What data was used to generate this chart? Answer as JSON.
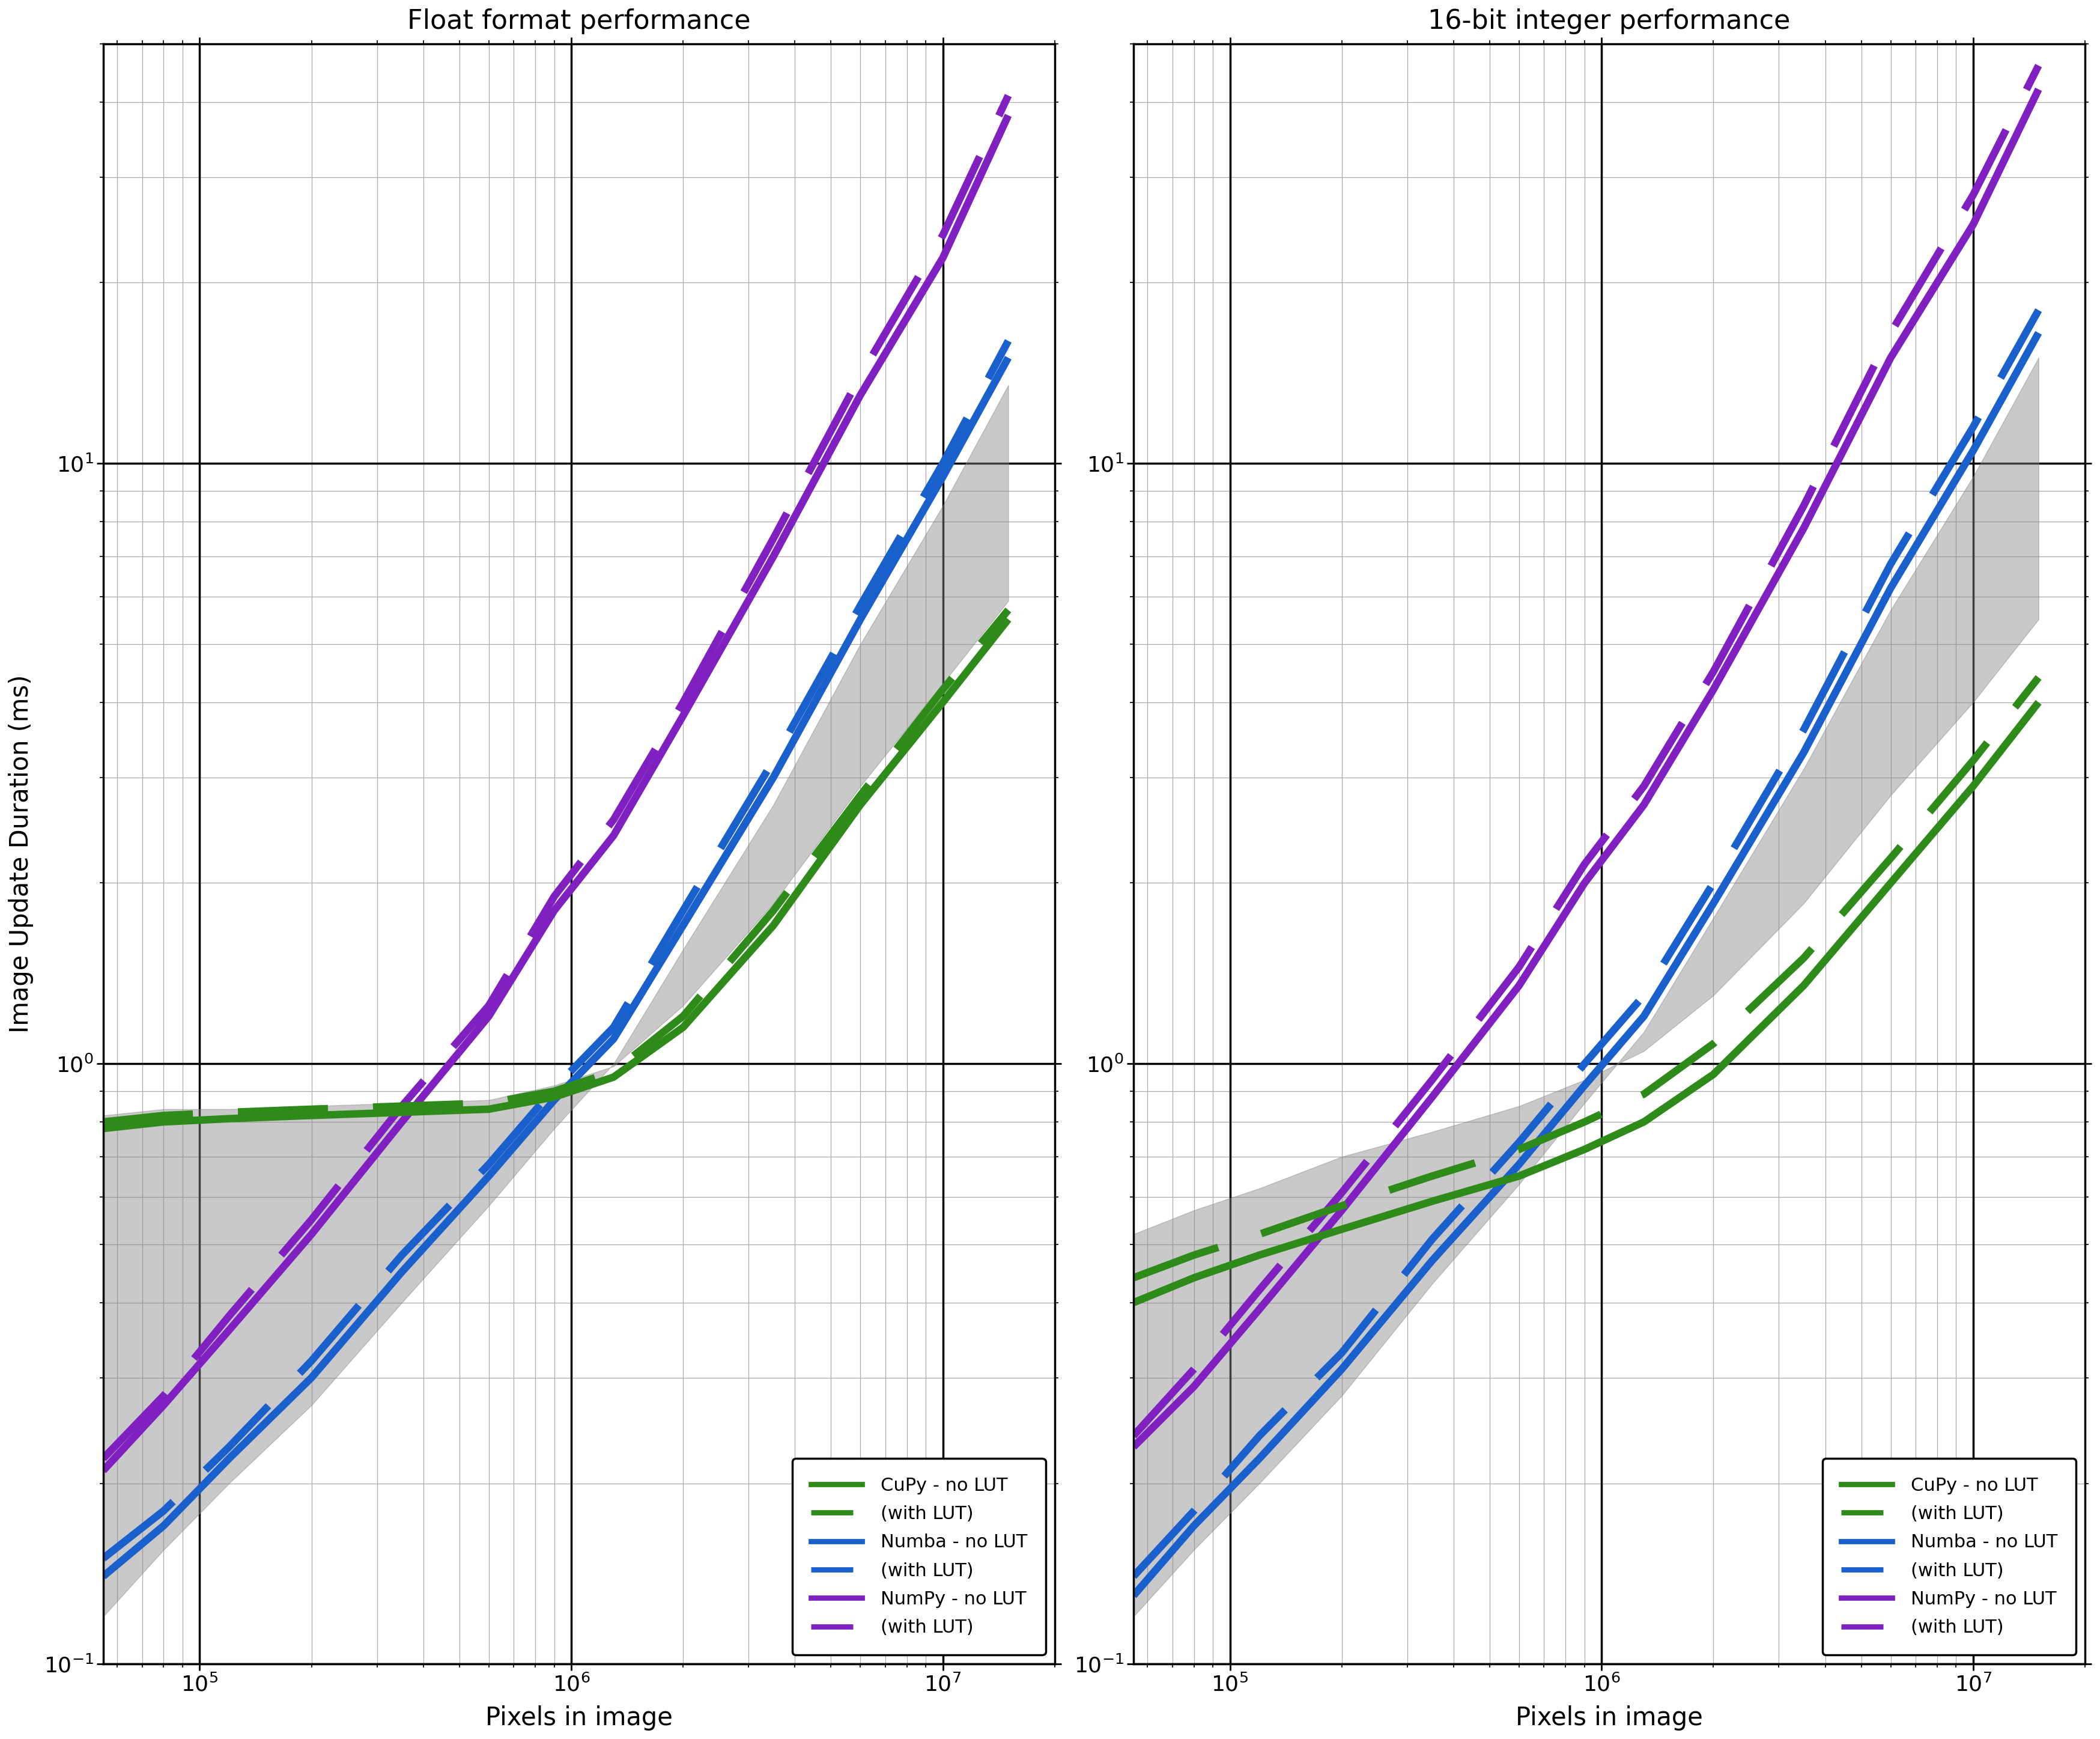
{
  "title_left": "Float format performance",
  "title_right": "16-bit integer performance",
  "xlabel": "Pixels in image",
  "ylabel": "Image Update Duration (ms)",
  "xlim": [
    55000,
    20000000
  ],
  "ylim": [
    0.1,
    50
  ],
  "colors": {
    "cupy": "#2e8b1a",
    "numba": "#1a60cc",
    "numpy": "#8020c0",
    "shade": "#888888"
  },
  "float": {
    "cupy_nolut_x": [
      55000,
      80000,
      120000,
      200000,
      350000,
      600000,
      900000,
      1300000,
      2000000,
      3500000,
      6000000,
      10000000,
      15000000
    ],
    "cupy_nolut_y": [
      0.78,
      0.8,
      0.81,
      0.82,
      0.83,
      0.84,
      0.88,
      0.95,
      1.15,
      1.7,
      2.7,
      4.0,
      5.5
    ],
    "cupy_lut_x": [
      55000,
      80000,
      120000,
      200000,
      350000,
      600000,
      900000,
      1300000,
      2000000,
      3500000,
      6000000,
      10000000,
      15000000
    ],
    "cupy_lut_y": [
      0.8,
      0.82,
      0.83,
      0.84,
      0.85,
      0.86,
      0.9,
      0.97,
      1.2,
      1.8,
      2.8,
      4.2,
      5.7
    ],
    "numba_nolut_x": [
      55000,
      80000,
      120000,
      200000,
      350000,
      600000,
      900000,
      1300000,
      2000000,
      3500000,
      6000000,
      10000000,
      15000000
    ],
    "numba_nolut_y": [
      0.14,
      0.17,
      0.22,
      0.3,
      0.45,
      0.65,
      0.87,
      1.1,
      1.7,
      3.0,
      5.5,
      9.5,
      15.0
    ],
    "numba_lut_x": [
      55000,
      80000,
      120000,
      200000,
      350000,
      600000,
      900000,
      1300000,
      2000000,
      3500000,
      6000000,
      10000000,
      15000000
    ],
    "numba_lut_y": [
      0.15,
      0.18,
      0.23,
      0.32,
      0.48,
      0.68,
      0.91,
      1.15,
      1.8,
      3.2,
      5.8,
      10.0,
      16.0
    ],
    "numpy_nolut_x": [
      55000,
      80000,
      120000,
      200000,
      350000,
      600000,
      900000,
      1300000,
      2000000,
      3500000,
      6000000,
      10000000,
      15000000
    ],
    "numpy_nolut_y": [
      0.21,
      0.27,
      0.36,
      0.52,
      0.8,
      1.2,
      1.8,
      2.4,
      3.8,
      7.0,
      13.0,
      22.0,
      38.0
    ],
    "numpy_lut_x": [
      55000,
      80000,
      120000,
      200000,
      350000,
      600000,
      900000,
      1300000,
      2000000,
      3500000,
      6000000,
      10000000,
      15000000
    ],
    "numpy_lut_y": [
      0.22,
      0.28,
      0.38,
      0.55,
      0.85,
      1.25,
      1.9,
      2.55,
      4.0,
      7.5,
      14.0,
      24.0,
      41.0
    ],
    "shade_x": [
      55000,
      80000,
      120000,
      200000,
      350000,
      600000,
      900000,
      1300000,
      2000000,
      3500000,
      6000000,
      10000000,
      15000000
    ],
    "shade_y_low": [
      0.12,
      0.155,
      0.2,
      0.27,
      0.4,
      0.58,
      0.78,
      1.0,
      1.55,
      2.7,
      5.0,
      8.5,
      13.5
    ],
    "shade_y_high": [
      0.82,
      0.84,
      0.84,
      0.85,
      0.86,
      0.87,
      0.92,
      0.99,
      1.25,
      1.85,
      2.9,
      4.3,
      5.9
    ]
  },
  "uint16": {
    "cupy_nolut_x": [
      55000,
      80000,
      120000,
      200000,
      350000,
      600000,
      900000,
      1300000,
      2000000,
      3500000,
      6000000,
      10000000,
      15000000
    ],
    "cupy_nolut_y": [
      0.4,
      0.44,
      0.48,
      0.53,
      0.59,
      0.65,
      0.72,
      0.8,
      0.96,
      1.35,
      2.0,
      2.9,
      4.0
    ],
    "cupy_lut_x": [
      55000,
      80000,
      120000,
      200000,
      350000,
      600000,
      900000,
      1300000,
      2000000,
      3500000,
      6000000,
      10000000,
      15000000
    ],
    "cupy_lut_y": [
      0.44,
      0.48,
      0.52,
      0.58,
      0.65,
      0.72,
      0.8,
      0.89,
      1.08,
      1.5,
      2.2,
      3.2,
      4.4
    ],
    "numba_nolut_x": [
      55000,
      80000,
      120000,
      200000,
      350000,
      600000,
      900000,
      1300000,
      2000000,
      3500000,
      6000000,
      10000000,
      15000000
    ],
    "numba_nolut_y": [
      0.13,
      0.17,
      0.22,
      0.31,
      0.47,
      0.68,
      0.92,
      1.2,
      1.85,
      3.3,
      6.2,
      10.5,
      16.5
    ],
    "numba_lut_x": [
      55000,
      80000,
      120000,
      200000,
      350000,
      600000,
      900000,
      1300000,
      2000000,
      3500000,
      6000000,
      10000000,
      15000000
    ],
    "numba_lut_y": [
      0.14,
      0.18,
      0.24,
      0.33,
      0.51,
      0.74,
      1.0,
      1.3,
      2.0,
      3.6,
      6.8,
      11.5,
      18.0
    ],
    "numpy_nolut_x": [
      55000,
      80000,
      120000,
      200000,
      350000,
      600000,
      900000,
      1300000,
      2000000,
      3500000,
      6000000,
      10000000,
      15000000
    ],
    "numpy_nolut_y": [
      0.23,
      0.29,
      0.39,
      0.57,
      0.88,
      1.35,
      2.0,
      2.7,
      4.2,
      7.8,
      15.0,
      25.0,
      42.0
    ],
    "numpy_lut_x": [
      55000,
      80000,
      120000,
      200000,
      350000,
      600000,
      900000,
      1300000,
      2000000,
      3500000,
      6000000,
      10000000,
      15000000
    ],
    "numpy_lut_y": [
      0.24,
      0.31,
      0.42,
      0.61,
      0.94,
      1.45,
      2.15,
      2.9,
      4.5,
      8.5,
      16.5,
      28.0,
      46.0
    ],
    "shade_x": [
      55000,
      80000,
      120000,
      200000,
      350000,
      600000,
      900000,
      1300000,
      2000000,
      3500000,
      6000000,
      10000000,
      15000000
    ],
    "shade_y_low": [
      0.12,
      0.155,
      0.2,
      0.28,
      0.43,
      0.63,
      0.86,
      1.13,
      1.75,
      3.1,
      5.7,
      9.5,
      15.0
    ],
    "shade_y_high": [
      0.52,
      0.57,
      0.62,
      0.7,
      0.77,
      0.85,
      0.94,
      1.05,
      1.3,
      1.85,
      2.8,
      4.0,
      5.5
    ]
  },
  "linewidth": 9,
  "shade_alpha": 0.45,
  "shade_color": "#888888",
  "background_color": "#ffffff"
}
